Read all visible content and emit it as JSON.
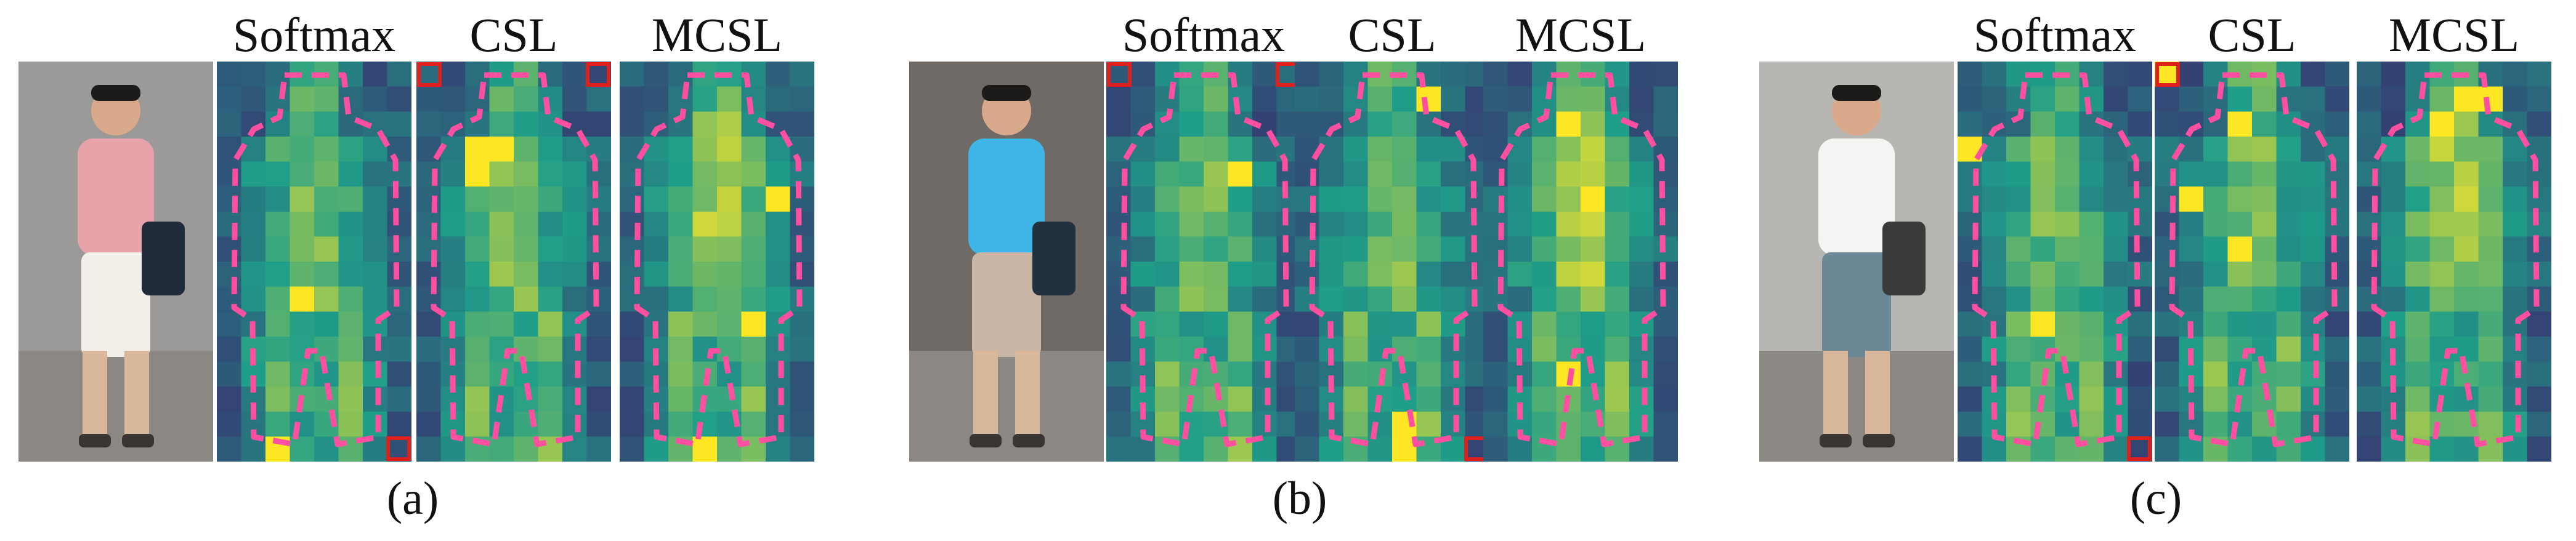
{
  "figure": {
    "panels": [
      {
        "id": "a",
        "caption": "(a)",
        "columns": [
          "Softmax",
          "CSL",
          "MCSL"
        ],
        "photo": {
          "shirt": "#e8a2a9",
          "pants": "#f2efe9",
          "bag": "#1f2a3a",
          "bg": "#9c9a98"
        },
        "markers": [
          {
            "map": "CSL",
            "corner": "top-left"
          },
          {
            "map": "CSL",
            "corner": "top-right"
          },
          {
            "map": "Softmax",
            "corner": "bottom-right"
          }
        ]
      },
      {
        "id": "b",
        "caption": "(b)",
        "columns": [
          "Softmax",
          "CSL",
          "MCSL"
        ],
        "photo": {
          "shirt": "#3fb4e6",
          "pants": "#c9b6a6",
          "bag": "#22303f",
          "bg": "#6f6a66"
        },
        "markers": [
          {
            "map": "Softmax",
            "corner": "top-left"
          },
          {
            "map": "Softmax",
            "corner": "top-right"
          },
          {
            "map": "CSL",
            "corner": "bottom-right"
          }
        ]
      },
      {
        "id": "c",
        "caption": "(c)",
        "columns": [
          "Softmax",
          "CSL",
          "MCSL"
        ],
        "photo": {
          "shirt": "#f4f4f2",
          "pants": "#6c8796",
          "bag": "#3a3a3a",
          "bg": "#b8b6b2"
        },
        "markers": [
          {
            "map": "CSL",
            "corner": "top-left"
          },
          {
            "map": "Softmax",
            "corner": "bottom-right"
          }
        ]
      }
    ],
    "colors": {
      "dashed_outline": "#ff4fa0",
      "marker": "#e0201b",
      "heatmap_low": "#3b1f6b",
      "heatmap_mid": "#1f9e89",
      "heatmap_high": "#fde725"
    }
  }
}
